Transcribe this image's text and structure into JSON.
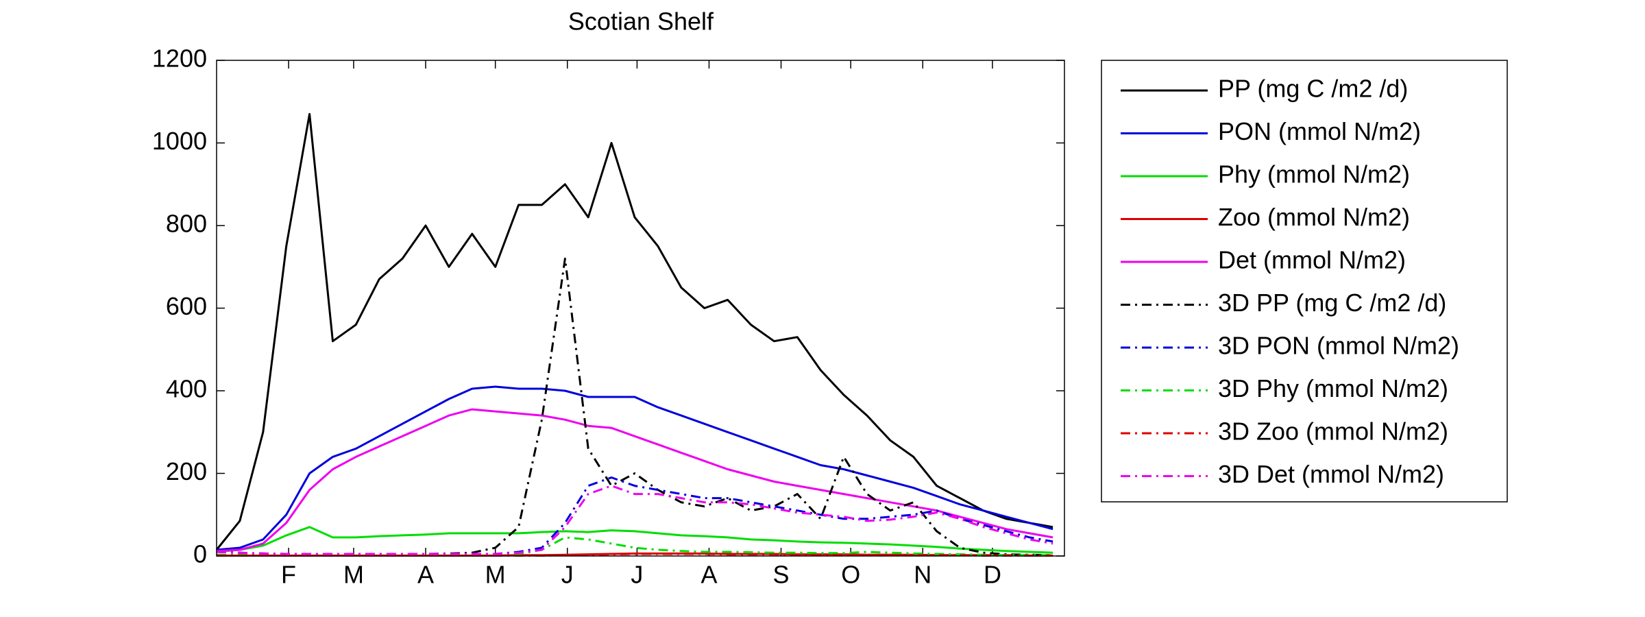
{
  "chart_data": {
    "type": "line",
    "title": "Scotian Shelf",
    "x": [
      1,
      11,
      21,
      31,
      41,
      51,
      61,
      71,
      81,
      91,
      101,
      111,
      121,
      131,
      141,
      151,
      161,
      171,
      181,
      191,
      201,
      211,
      221,
      231,
      241,
      251,
      261,
      271,
      281,
      291,
      301,
      311,
      321,
      331,
      341,
      351,
      361
    ],
    "xlim": [
      1,
      366
    ],
    "xticks": [
      {
        "value": 32,
        "label": "F"
      },
      {
        "value": 60,
        "label": "M"
      },
      {
        "value": 91,
        "label": "A"
      },
      {
        "value": 121,
        "label": "M"
      },
      {
        "value": 152,
        "label": "J"
      },
      {
        "value": 182,
        "label": "J"
      },
      {
        "value": 213,
        "label": "A"
      },
      {
        "value": 244,
        "label": "S"
      },
      {
        "value": 274,
        "label": "O"
      },
      {
        "value": 305,
        "label": "N"
      },
      {
        "value": 335,
        "label": "D"
      }
    ],
    "ylim": [
      0,
      1200
    ],
    "yticks": [
      0,
      200,
      400,
      600,
      800,
      1000,
      1200
    ],
    "legend": "outside right",
    "series": [
      {
        "name": "PP (mg C /m2 /d)",
        "color": "#000000",
        "linestyle": "solid",
        "values": [
          15,
          85,
          300,
          750,
          1070,
          520,
          560,
          670,
          720,
          800,
          700,
          780,
          700,
          850,
          850,
          900,
          820,
          1000,
          820,
          750,
          650,
          600,
          620,
          560,
          520,
          530,
          450,
          390,
          340,
          280,
          240,
          170,
          140,
          110,
          90,
          80,
          70
        ]
      },
      {
        "name": "PON (mmol N/m2)",
        "color": "#0000dd",
        "linestyle": "solid",
        "values": [
          15,
          20,
          40,
          100,
          200,
          240,
          260,
          290,
          320,
          350,
          380,
          405,
          410,
          405,
          405,
          400,
          385,
          385,
          385,
          360,
          340,
          320,
          300,
          280,
          260,
          240,
          220,
          210,
          195,
          180,
          165,
          145,
          125,
          110,
          95,
          80,
          65
        ]
      },
      {
        "name": "Phy (mmol N/m2)",
        "color": "#00dd00",
        "linestyle": "solid",
        "values": [
          10,
          15,
          25,
          50,
          70,
          45,
          45,
          48,
          50,
          52,
          55,
          55,
          55,
          55,
          58,
          60,
          58,
          62,
          60,
          55,
          50,
          48,
          45,
          40,
          38,
          35,
          33,
          32,
          30,
          28,
          25,
          22,
          18,
          15,
          12,
          10,
          8
        ]
      },
      {
        "name": "Zoo (mmol N/m2)",
        "color": "#dd0000",
        "linestyle": "solid",
        "values": [
          1,
          1,
          1,
          1,
          1,
          1,
          1,
          1,
          1,
          1,
          1,
          1,
          1,
          2,
          2,
          3,
          4,
          5,
          6,
          6,
          6,
          6,
          5,
          5,
          5,
          4,
          4,
          4,
          3,
          3,
          3,
          2,
          2,
          2,
          2,
          1,
          1
        ]
      },
      {
        "name": "Det (mmol N/m2)",
        "color": "#ee00ee",
        "linestyle": "solid",
        "values": [
          12,
          15,
          30,
          80,
          160,
          210,
          240,
          265,
          290,
          315,
          340,
          355,
          350,
          345,
          340,
          330,
          315,
          310,
          290,
          270,
          250,
          230,
          210,
          195,
          180,
          170,
          160,
          150,
          140,
          130,
          120,
          110,
          95,
          80,
          65,
          55,
          45
        ]
      },
      {
        "name": "3D PP (mg C /m2 /d)",
        "color": "#000000",
        "linestyle": "dashdot",
        "values": [
          10,
          8,
          6,
          5,
          5,
          5,
          5,
          5,
          5,
          5,
          6,
          8,
          20,
          70,
          330,
          720,
          260,
          170,
          200,
          160,
          130,
          120,
          140,
          110,
          120,
          150,
          90,
          240,
          150,
          110,
          130,
          60,
          20,
          8,
          4,
          3,
          2
        ]
      },
      {
        "name": "3D PON (mmol N/m2)",
        "color": "#0000dd",
        "linestyle": "dashdot",
        "values": [
          10,
          8,
          6,
          5,
          5,
          5,
          5,
          5,
          5,
          5,
          5,
          5,
          5,
          10,
          20,
          80,
          170,
          190,
          170,
          160,
          150,
          140,
          140,
          130,
          120,
          110,
          100,
          90,
          90,
          95,
          100,
          110,
          90,
          75,
          60,
          45,
          35
        ]
      },
      {
        "name": "3D Phy (mmol N/m2)",
        "color": "#00dd00",
        "linestyle": "dashdot",
        "values": [
          3,
          3,
          3,
          3,
          3,
          3,
          3,
          3,
          3,
          3,
          3,
          3,
          3,
          5,
          15,
          45,
          40,
          30,
          20,
          15,
          12,
          10,
          10,
          9,
          8,
          8,
          7,
          7,
          10,
          8,
          6,
          5,
          4,
          3,
          2,
          2,
          2
        ]
      },
      {
        "name": "3D Zoo (mmol N/m2)",
        "color": "#dd0000",
        "linestyle": "dashdot",
        "values": [
          1,
          1,
          1,
          1,
          1,
          1,
          1,
          1,
          1,
          1,
          1,
          1,
          1,
          1,
          1,
          2,
          3,
          4,
          5,
          5,
          5,
          5,
          4,
          4,
          4,
          3,
          3,
          3,
          3,
          3,
          2,
          2,
          2,
          1,
          1,
          1,
          1
        ]
      },
      {
        "name": "3D Det (mmol N/m2)",
        "color": "#ee00ee",
        "linestyle": "dashdot",
        "values": [
          10,
          8,
          6,
          5,
          5,
          5,
          5,
          5,
          5,
          5,
          5,
          5,
          5,
          8,
          15,
          70,
          150,
          170,
          150,
          150,
          140,
          130,
          130,
          125,
          115,
          105,
          100,
          95,
          85,
          88,
          95,
          105,
          90,
          70,
          55,
          40,
          30
        ]
      }
    ]
  }
}
